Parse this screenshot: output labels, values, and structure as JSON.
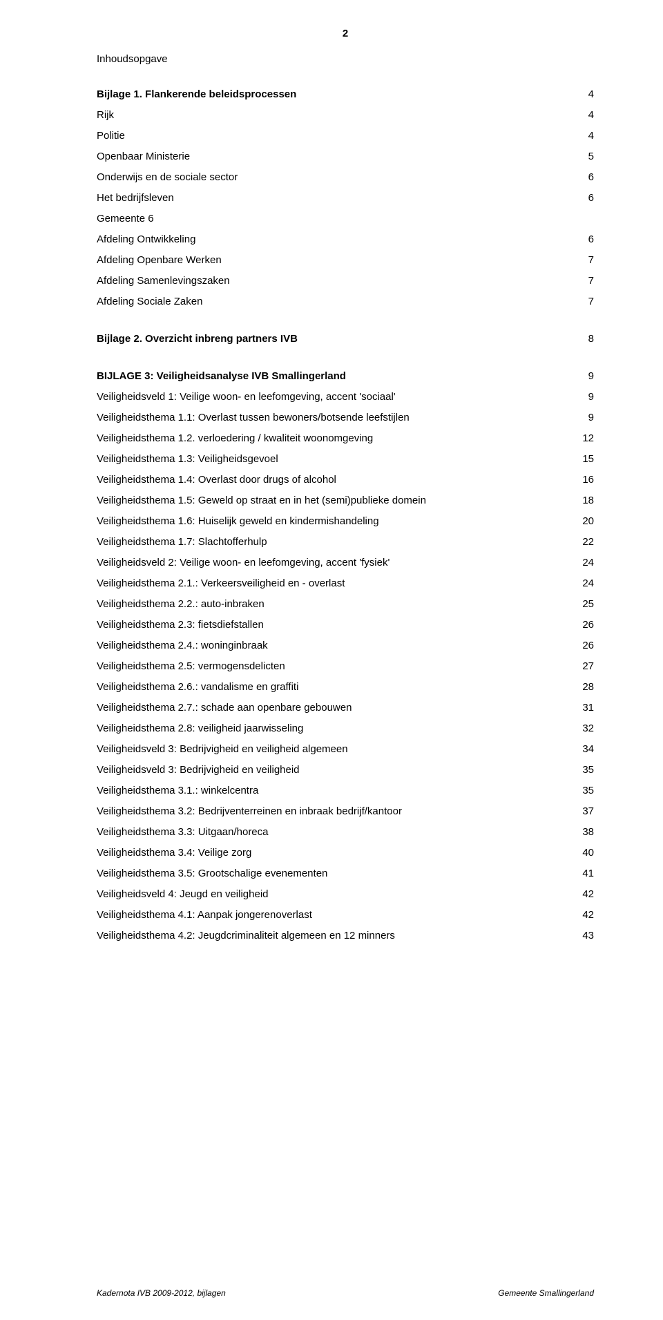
{
  "page_number_top": "2",
  "toc_heading": "Inhoudsopgave",
  "sections": [
    {
      "gap_before": false,
      "lines": [
        {
          "label": "Bijlage 1. Flankerende beleidsprocessen",
          "page": "4",
          "bold": true
        },
        {
          "label": "Rijk",
          "page": "4",
          "bold": false
        },
        {
          "label": "Politie",
          "page": "4",
          "bold": false
        },
        {
          "label": "Openbaar Ministerie",
          "page": "5",
          "bold": false
        },
        {
          "label": "Onderwijs en de sociale sector",
          "page": "6",
          "bold": false
        },
        {
          "label": "Het bedrijfsleven",
          "page": "6",
          "bold": false
        },
        {
          "label": "Gemeente   6",
          "page": "",
          "bold": false
        },
        {
          "label": "Afdeling Ontwikkeling",
          "page": "6",
          "bold": false
        },
        {
          "label": "Afdeling Openbare Werken",
          "page": "7",
          "bold": false
        },
        {
          "label": "Afdeling Samenlevingszaken",
          "page": "7",
          "bold": false
        },
        {
          "label": "Afdeling Sociale Zaken",
          "page": "7",
          "bold": false
        }
      ]
    },
    {
      "gap_before": true,
      "lines": [
        {
          "label": "Bijlage 2. Overzicht inbreng partners IVB",
          "page": "8",
          "bold": true
        }
      ]
    },
    {
      "gap_before": true,
      "lines": [
        {
          "label": "BIJLAGE 3: Veiligheidsanalyse IVB Smallingerland",
          "page": "9",
          "bold": true
        },
        {
          "label": "Veiligheidsveld 1: Veilige woon- en leefomgeving, accent 'sociaal'",
          "page": "9",
          "bold": false
        },
        {
          "label": "Veiligheidsthema 1.1: Overlast tussen bewoners/botsende leefstijlen",
          "page": "9",
          "bold": false
        },
        {
          "label": "Veiligheidsthema 1.2.  verloedering / kwaliteit woonomgeving",
          "page": "12",
          "bold": false
        },
        {
          "label": "Veiligheidsthema 1.3: Veiligheidsgevoel",
          "page": "15",
          "bold": false
        },
        {
          "label": "Veiligheidsthema 1.4: Overlast door drugs of alcohol",
          "page": "16",
          "bold": false
        },
        {
          "label": "Veiligheidsthema 1.5: Geweld op straat en in het (semi)publieke domein",
          "page": "18",
          "bold": false
        },
        {
          "label": "Veiligheidsthema 1.6: Huiselijk geweld en kindermishandeling",
          "page": "20",
          "bold": false
        },
        {
          "label": "Veiligheidsthema 1.7: Slachtofferhulp",
          "page": "22",
          "bold": false
        },
        {
          "label": "Veiligheidsveld 2: Veilige woon- en leefomgeving, accent 'fysiek'",
          "page": "24",
          "bold": false
        },
        {
          "label": "Veiligheidsthema 2.1.: Verkeersveiligheid en - overlast",
          "page": "24",
          "bold": false
        },
        {
          "label": "Veiligheidsthema 2.2.: auto-inbraken",
          "page": "25",
          "bold": false
        },
        {
          "label": "Veiligheidsthema 2.3: fietsdiefstallen",
          "page": "26",
          "bold": false
        },
        {
          "label": "Veiligheidsthema 2.4.: woninginbraak",
          "page": "26",
          "bold": false
        },
        {
          "label": "Veiligheidsthema 2.5: vermogensdelicten",
          "page": "27",
          "bold": false
        },
        {
          "label": "Veiligheidsthema 2.6.: vandalisme en graffiti",
          "page": "28",
          "bold": false
        },
        {
          "label": "Veiligheidsthema 2.7.: schade aan openbare gebouwen",
          "page": "31",
          "bold": false
        },
        {
          "label": "Veiligheidsthema 2.8: veiligheid jaarwisseling",
          "page": "32",
          "bold": false
        },
        {
          "label": "Veiligheidsveld 3: Bedrijvigheid en veiligheid algemeen",
          "page": "34",
          "bold": false
        },
        {
          "label": "Veiligheidsveld 3: Bedrijvigheid en veiligheid",
          "page": "35",
          "bold": false
        },
        {
          "label": "Veiligheidsthema 3.1.: winkelcentra",
          "page": "35",
          "bold": false
        },
        {
          "label": "Veiligheidsthema 3.2: Bedrijventerreinen en inbraak bedrijf/kantoor",
          "page": "37",
          "bold": false
        },
        {
          "label": "Veiligheidsthema 3.3: Uitgaan/horeca",
          "page": "38",
          "bold": false
        },
        {
          "label": "Veiligheidsthema 3.4: Veilige zorg",
          "page": "40",
          "bold": false
        },
        {
          "label": "Veiligheidsthema 3.5: Grootschalige evenementen",
          "page": "41",
          "bold": false
        },
        {
          "label": "Veiligheidsveld 4: Jeugd en veiligheid",
          "page": "42",
          "bold": false
        },
        {
          "label": "Veiligheidsthema 4.1: Aanpak jongerenoverlast",
          "page": "42",
          "bold": false
        },
        {
          "label": "Veiligheidsthema 4.2: Jeugdcriminaliteit algemeen en 12 minners",
          "page": "43",
          "bold": false
        }
      ]
    }
  ],
  "footer_left": "Kadernota IVB 2009-2012, bijlagen",
  "footer_right": "Gemeente Smallingerland"
}
